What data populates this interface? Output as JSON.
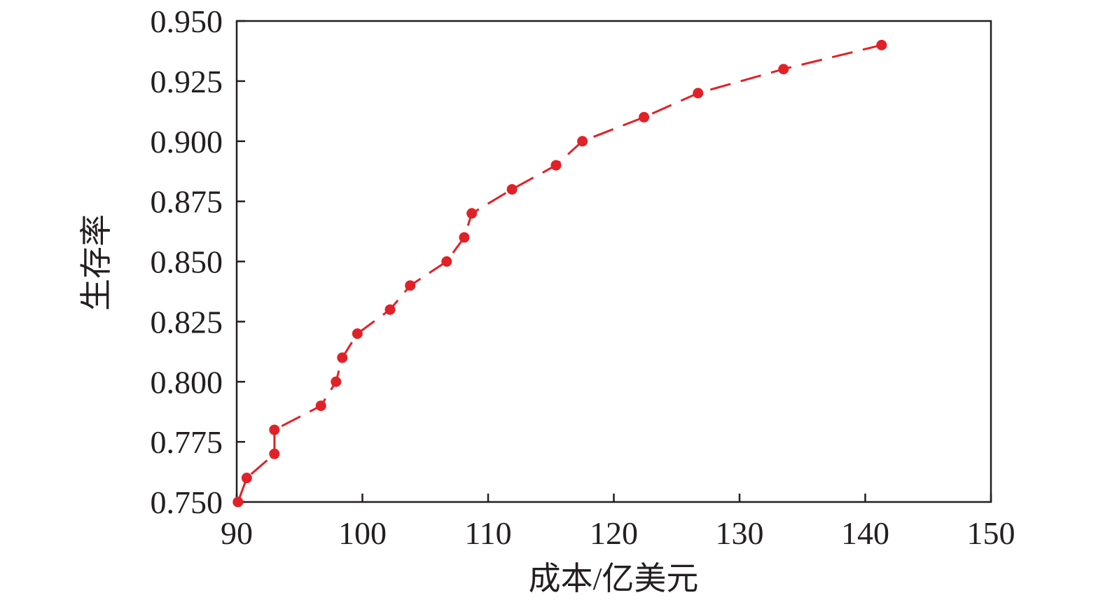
{
  "chart_data": {
    "type": "line",
    "title": "",
    "xlabel": "成本/亿美元",
    "ylabel": "生存率",
    "xlim": [
      90,
      150
    ],
    "ylim": [
      0.75,
      0.95
    ],
    "x_ticks": [
      "90",
      "100",
      "110",
      "120",
      "130",
      "140",
      "150"
    ],
    "y_ticks": [
      "0.750",
      "0.775",
      "0.800",
      "0.825",
      "0.850",
      "0.875",
      "0.900",
      "0.925",
      "0.950"
    ],
    "grid": false,
    "line_style": "dashed",
    "marker": "circle",
    "color": "#e02228",
    "series": [
      {
        "x": [
          90.1,
          90.8,
          93.0,
          93.0,
          96.7,
          97.9,
          98.4,
          99.6,
          102.2,
          103.8,
          106.7,
          108.1,
          108.7,
          111.9,
          115.4,
          117.5,
          122.4,
          126.7,
          133.5,
          141.3
        ],
        "y": [
          0.75,
          0.76,
          0.77,
          0.78,
          0.79,
          0.8,
          0.81,
          0.82,
          0.83,
          0.84,
          0.85,
          0.86,
          0.87,
          0.88,
          0.89,
          0.9,
          0.91,
          0.92,
          0.93,
          0.94
        ]
      }
    ]
  }
}
